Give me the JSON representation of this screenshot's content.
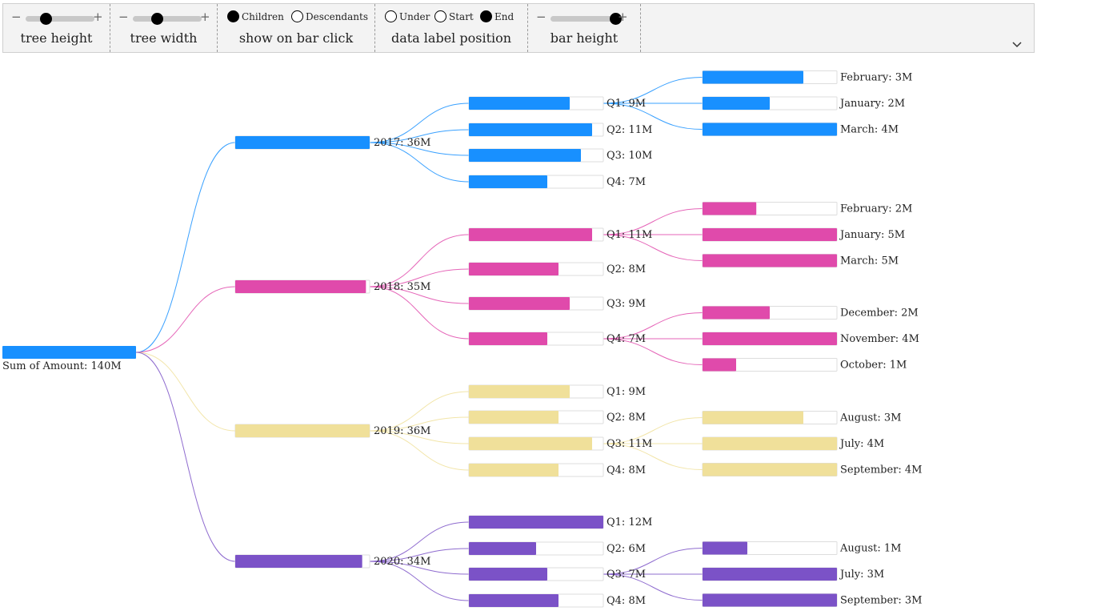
{
  "toolbar": {
    "tree_height": {
      "label": "tree height",
      "minus": "−",
      "plus": "+",
      "value": 0.3
    },
    "tree_width": {
      "label": "tree width",
      "minus": "−",
      "plus": "+",
      "value": 0.35
    },
    "show_on_bar_click": {
      "label": "show on bar click",
      "options": [
        "Children",
        "Descendants"
      ],
      "selected": "Children"
    },
    "data_label_position": {
      "label": "data label position",
      "options": [
        "Under",
        "Start",
        "End"
      ],
      "selected": "End"
    },
    "bar_height": {
      "label": "bar height",
      "minus": "−",
      "plus": "+",
      "value": 0.95
    },
    "collapse_icon": "chevron-down-icon"
  },
  "colors": {
    "2017": "#1890ff",
    "2018": "#e04aab",
    "2019": "#f0e09a",
    "2020": "#7b52c7",
    "track_border": "#dddddd"
  },
  "chart_data": {
    "type": "decomposition-tree",
    "root": {
      "label": "Sum of Amount: 140M",
      "value": 140
    },
    "level1": [
      {
        "id": "2017",
        "label": "2017: 36M",
        "value": 36
      },
      {
        "id": "2018",
        "label": "2018: 35M",
        "value": 35
      },
      {
        "id": "2019",
        "label": "2019: 36M",
        "value": 36
      },
      {
        "id": "2020",
        "label": "2020: 34M",
        "value": 34
      }
    ],
    "level2": [
      {
        "id": "2017-Q1",
        "parent": "2017",
        "label": "Q1: 9M",
        "value": 9
      },
      {
        "id": "2017-Q2",
        "parent": "2017",
        "label": "Q2: 11M",
        "value": 11
      },
      {
        "id": "2017-Q3",
        "parent": "2017",
        "label": "Q3: 10M",
        "value": 10
      },
      {
        "id": "2017-Q4",
        "parent": "2017",
        "label": "Q4: 7M",
        "value": 7
      },
      {
        "id": "2018-Q1",
        "parent": "2018",
        "label": "Q1: 11M",
        "value": 11
      },
      {
        "id": "2018-Q2",
        "parent": "2018",
        "label": "Q2: 8M",
        "value": 8
      },
      {
        "id": "2018-Q3",
        "parent": "2018",
        "label": "Q3: 9M",
        "value": 9
      },
      {
        "id": "2018-Q4",
        "parent": "2018",
        "label": "Q4: 7M",
        "value": 7
      },
      {
        "id": "2019-Q1",
        "parent": "2019",
        "label": "Q1: 9M",
        "value": 9
      },
      {
        "id": "2019-Q2",
        "parent": "2019",
        "label": "Q2: 8M",
        "value": 8
      },
      {
        "id": "2019-Q3",
        "parent": "2019",
        "label": "Q3: 11M",
        "value": 11
      },
      {
        "id": "2019-Q4",
        "parent": "2019",
        "label": "Q4: 8M",
        "value": 8
      },
      {
        "id": "2020-Q1",
        "parent": "2020",
        "label": "Q1: 12M",
        "value": 12
      },
      {
        "id": "2020-Q2",
        "parent": "2020",
        "label": "Q2: 6M",
        "value": 6
      },
      {
        "id": "2020-Q3",
        "parent": "2020",
        "label": "Q3: 7M",
        "value": 7
      },
      {
        "id": "2020-Q4",
        "parent": "2020",
        "label": "Q4: 8M",
        "value": 8
      }
    ],
    "level3": [
      {
        "parent": "2017-Q1",
        "label": "February: 3M",
        "value": 3
      },
      {
        "parent": "2017-Q1",
        "label": "January: 2M",
        "value": 2
      },
      {
        "parent": "2017-Q1",
        "label": "March: 4M",
        "value": 4
      },
      {
        "parent": "2018-Q1",
        "label": "February: 2M",
        "value": 2
      },
      {
        "parent": "2018-Q1",
        "label": "January: 5M",
        "value": 5
      },
      {
        "parent": "2018-Q1",
        "label": "March: 5M",
        "value": 5
      },
      {
        "parent": "2018-Q4",
        "label": "December: 2M",
        "value": 2
      },
      {
        "parent": "2018-Q4",
        "label": "November: 4M",
        "value": 4
      },
      {
        "parent": "2018-Q4",
        "label": "October: 1M",
        "value": 1
      },
      {
        "parent": "2019-Q3",
        "label": "August: 3M",
        "value": 3
      },
      {
        "parent": "2019-Q3",
        "label": "July: 4M",
        "value": 4
      },
      {
        "parent": "2019-Q3",
        "label": "September: 4M",
        "value": 4
      },
      {
        "parent": "2020-Q3",
        "label": "August: 1M",
        "value": 1
      },
      {
        "parent": "2020-Q3",
        "label": "July: 3M",
        "value": 3
      },
      {
        "parent": "2020-Q3",
        "label": "September: 3M",
        "value": 3
      }
    ]
  }
}
